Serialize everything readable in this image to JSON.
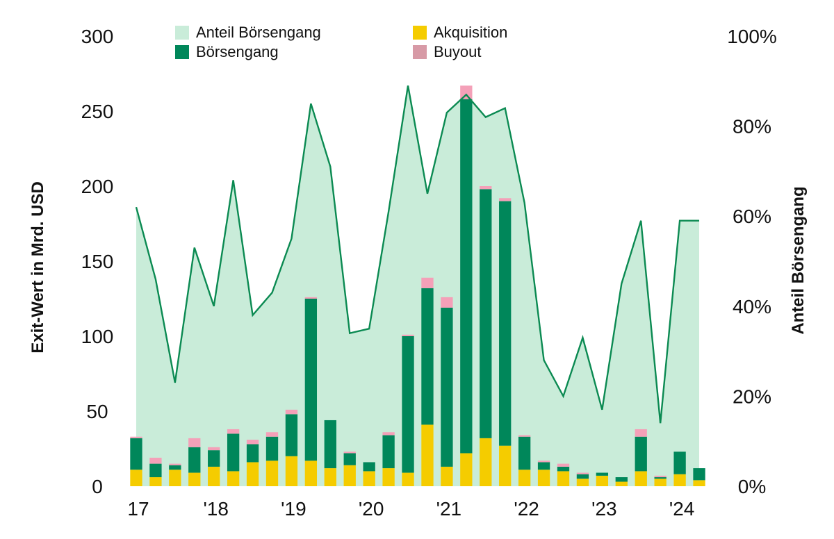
{
  "chart_data": {
    "type": "bar",
    "stacked": true,
    "x_tick_labels": [
      "17",
      "'18",
      "'19",
      "'20",
      "'21",
      "'22",
      "'23",
      "'24"
    ],
    "y_ticks": [
      "0",
      "50",
      "100",
      "150",
      "200",
      "250",
      "300"
    ],
    "y2_ticks": [
      "0%",
      "20%",
      "40%",
      "60%",
      "80%",
      "100%"
    ],
    "ylabel": "Exit-Wert in Mrd. USD",
    "y2label": "Anteil Börsengang",
    "ylim": [
      0,
      300
    ],
    "y2lim": [
      0,
      100
    ],
    "legend": [
      {
        "key": "share",
        "label": "Anteil Börsengang",
        "color": "#c9ecd9"
      },
      {
        "key": "ipo",
        "label": "Börsengang",
        "color": "#00875a"
      },
      {
        "key": "acq",
        "label": "Akquisition",
        "color": "#f5cc00"
      },
      {
        "key": "buyout",
        "label": "Buyout",
        "color": "#f4a0b8"
      }
    ],
    "colors": {
      "area_fill": "#c9ecd9",
      "area_line": "#0b8a52",
      "ipo": "#00875a",
      "acq": "#f5cc00",
      "buyout": "#f4a0b8"
    },
    "quarters": [
      "Q1 2017",
      "Q2 2017",
      "Q3 2017",
      "Q4 2017",
      "Q1 2018",
      "Q2 2018",
      "Q3 2018",
      "Q4 2018",
      "Q1 2019",
      "Q2 2019",
      "Q3 2019",
      "Q4 2019",
      "Q1 2020",
      "Q2 2020",
      "Q3 2020",
      "Q4 2020",
      "Q1 2021",
      "Q2 2021",
      "Q3 2021",
      "Q4 2021",
      "Q1 2022",
      "Q2 2022",
      "Q3 2022",
      "Q4 2022",
      "Q1 2023",
      "Q2 2023",
      "Q3 2023",
      "Q4 2023",
      "Q1 2024",
      "Q2 2024"
    ],
    "series": [
      {
        "name": "Akquisition",
        "key": "acq",
        "values": [
          11,
          6,
          11,
          9,
          13,
          10,
          16,
          17,
          20,
          17,
          12,
          14,
          10,
          12,
          9,
          41,
          13,
          22,
          32,
          27,
          11,
          11,
          10,
          5,
          7,
          3,
          10,
          5,
          8,
          4
        ]
      },
      {
        "name": "Börsengang",
        "key": "ipo",
        "values": [
          21,
          9,
          3,
          17,
          11,
          25,
          12,
          16,
          28,
          108,
          32,
          8,
          6,
          22,
          91,
          91,
          106,
          236,
          166,
          163,
          22,
          5,
          3,
          3,
          2,
          3,
          23,
          1,
          15,
          8
        ]
      },
      {
        "name": "Buyout",
        "key": "buyout",
        "values": [
          1,
          4,
          1,
          6,
          2,
          3,
          3,
          3,
          3,
          1,
          0,
          1,
          0,
          2,
          1,
          7,
          7,
          9,
          2,
          2,
          1,
          1,
          2,
          1,
          0,
          0,
          5,
          1,
          0,
          0
        ]
      },
      {
        "name": "Anteil Börsengang",
        "key": "share",
        "axis": "right",
        "unit": "%",
        "values": [
          62,
          46,
          23,
          53,
          40,
          68,
          38,
          43,
          55,
          85,
          71,
          34,
          35,
          61,
          89,
          65,
          83,
          87,
          82,
          84,
          63,
          28,
          20,
          33,
          17,
          45,
          59,
          14,
          59,
          59
        ]
      }
    ]
  }
}
